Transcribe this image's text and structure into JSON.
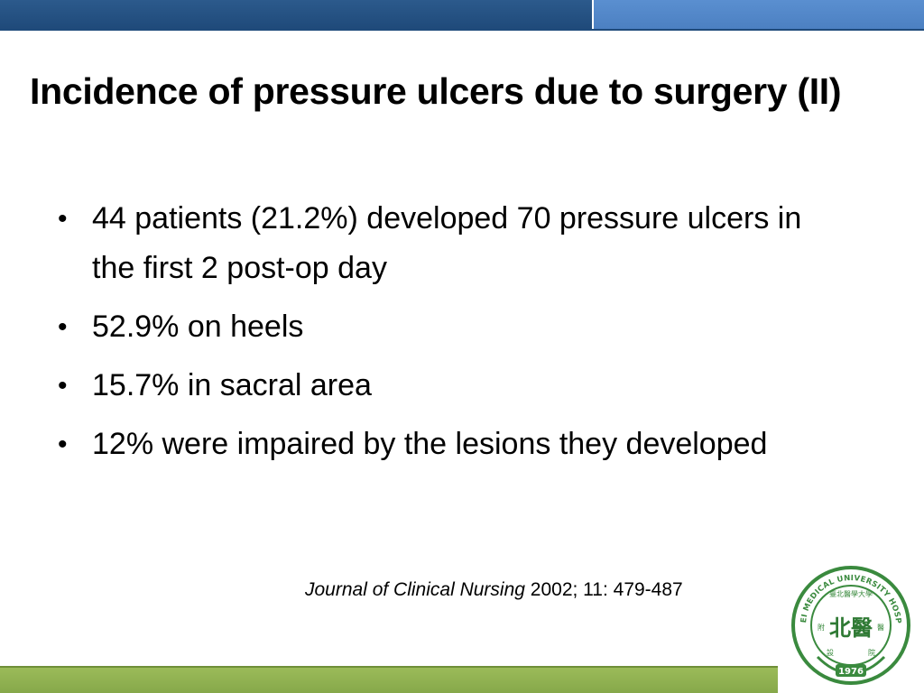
{
  "slide": {
    "title": "Incidence of pressure ulcers due to surgery (II)",
    "bullets": [
      "44 patients (21.2%) developed 70 pressure ulcers in the first 2 post-op day",
      "52.9% on heels",
      "15.7% in sacral area",
      "12% were impaired by the lesions they developed"
    ],
    "bullet_glyph": "•",
    "citation": {
      "journal": "Journal of Clinical Nursing",
      "details": " 2002; 11: 479-487"
    }
  },
  "logo": {
    "name": "TAIPEI MEDICAL UNIVERSITY HOSPITAL",
    "chinese": "臺北醫學大學",
    "side_left": "附",
    "side_right": "醫",
    "bottom_left": "設",
    "bottom_right": "院",
    "center": "北醫",
    "year": "1976"
  },
  "colors": {
    "top_bar_dark": "#1f4a7a",
    "top_bar_light": "#4c80c2",
    "bottom_bar": "#9bbb59",
    "logo_green": "#3a8a3e"
  }
}
